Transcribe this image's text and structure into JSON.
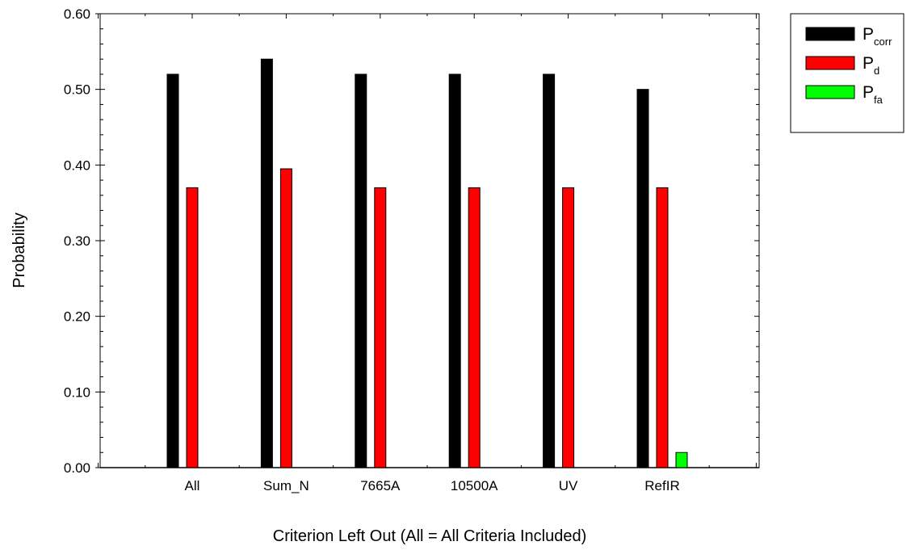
{
  "chart_data": {
    "type": "bar",
    "title": "",
    "xlabel": "Criterion Left Out (All = All Criteria Included)",
    "ylabel": "Probability",
    "ylim": [
      0.0,
      0.6
    ],
    "yticks": [
      "0.00",
      "0.10",
      "0.20",
      "0.30",
      "0.40",
      "0.50",
      "0.60"
    ],
    "categories": [
      "All",
      "Sum_N",
      "7665A",
      "10500A",
      "UV",
      "RefIR"
    ],
    "series": [
      {
        "name": "P_corr",
        "label_main": "P",
        "label_sub": "corr",
        "color": "#000000",
        "values": [
          0.52,
          0.54,
          0.52,
          0.52,
          0.52,
          0.5
        ]
      },
      {
        "name": "P_d",
        "label_main": "P",
        "label_sub": "d",
        "color": "#ff0000",
        "values": [
          0.37,
          0.395,
          0.37,
          0.37,
          0.37,
          0.37
        ]
      },
      {
        "name": "P_fa",
        "label_main": "P",
        "label_sub": "fa",
        "color": "#00ff00",
        "values": [
          0.0,
          0.0,
          0.0,
          0.0,
          0.0,
          0.02
        ]
      }
    ],
    "legend": "top-right",
    "grid": false
  }
}
